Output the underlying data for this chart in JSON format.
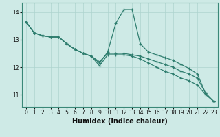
{
  "bg_color": "#ceeae6",
  "line_color": "#2e7d6e",
  "grid_color_major": "#aed4ce",
  "grid_color_minor": "#c4e4de",
  "xlabel": "Humidex (Indice chaleur)",
  "xlim": [
    -0.5,
    23.5
  ],
  "ylim": [
    10.55,
    14.35
  ],
  "xticks": [
    0,
    1,
    2,
    3,
    4,
    5,
    6,
    7,
    8,
    9,
    10,
    11,
    12,
    13,
    14,
    15,
    16,
    17,
    18,
    19,
    20,
    21,
    22,
    23
  ],
  "yticks": [
    11,
    12,
    13,
    14
  ],
  "lines": [
    {
      "x": [
        0,
        1,
        2,
        3,
        4,
        5,
        6,
        7,
        8,
        9,
        10,
        11,
        12,
        13,
        14,
        15,
        16,
        17,
        18,
        19,
        20,
        21,
        22,
        23
      ],
      "y": [
        13.65,
        13.25,
        13.15,
        13.1,
        13.1,
        12.85,
        12.65,
        12.5,
        12.4,
        12.15,
        12.55,
        13.6,
        14.1,
        14.1,
        12.85,
        12.55,
        12.45,
        12.35,
        12.25,
        12.1,
        11.95,
        11.75,
        11.05,
        10.75
      ]
    },
    {
      "x": [
        0,
        1,
        2,
        3,
        4,
        5,
        6,
        7,
        8,
        9,
        10,
        11,
        12,
        13,
        14,
        15,
        16,
        17,
        18,
        19,
        20,
        21,
        22,
        23
      ],
      "y": [
        13.65,
        13.25,
        13.15,
        13.1,
        13.1,
        12.85,
        12.65,
        12.5,
        12.4,
        12.2,
        12.5,
        12.5,
        12.5,
        12.45,
        12.4,
        12.3,
        12.2,
        12.1,
        12.0,
        11.85,
        11.75,
        11.6,
        11.05,
        10.75
      ]
    },
    {
      "x": [
        0,
        1,
        2,
        3,
        4,
        5,
        6,
        7,
        8,
        9,
        10,
        11,
        12,
        13,
        14,
        15,
        16,
        17,
        18,
        19,
        20,
        21,
        22,
        23
      ],
      "y": [
        13.65,
        13.25,
        13.15,
        13.1,
        13.1,
        12.85,
        12.65,
        12.5,
        12.4,
        12.05,
        12.45,
        12.45,
        12.45,
        12.4,
        12.3,
        12.15,
        12.0,
        11.85,
        11.75,
        11.6,
        11.5,
        11.35,
        11.0,
        10.75
      ]
    }
  ]
}
